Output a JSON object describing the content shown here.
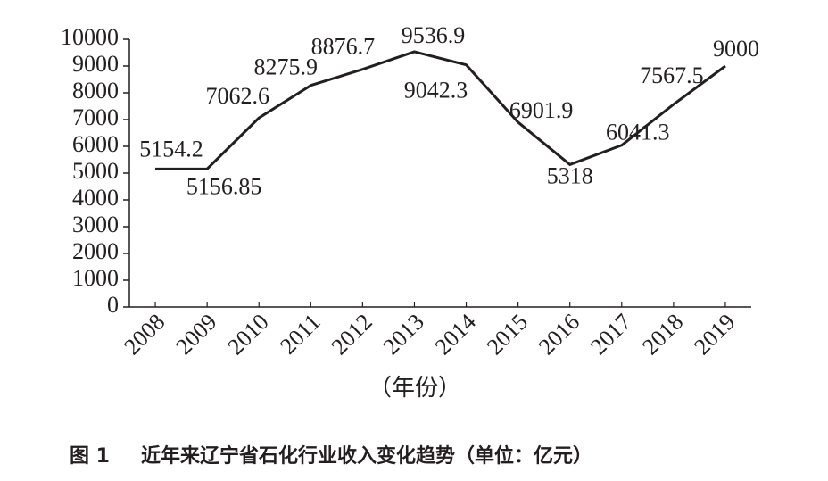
{
  "chart_data": {
    "type": "line",
    "categories": [
      "2008",
      "2009",
      "2010",
      "2011",
      "2012",
      "2013",
      "2014",
      "2015",
      "2016",
      "2017",
      "2018",
      "2019"
    ],
    "series": [
      {
        "color": "#231f20",
        "values": [
          5154.2,
          5156.85,
          7062.6,
          8275.9,
          8876.7,
          9536.9,
          9042.3,
          6901.9,
          5318,
          6041.3,
          7567.5,
          9000
        ]
      }
    ],
    "ylim": [
      0,
      10000
    ],
    "yticks": [
      0,
      1000,
      2000,
      3000,
      4000,
      5000,
      6000,
      7000,
      8000,
      9000,
      10000
    ],
    "x_label": "（年份）",
    "figure_number": "图 1",
    "title": "近年来辽宁省石化行业收入变化趋势（单位：亿元）"
  }
}
